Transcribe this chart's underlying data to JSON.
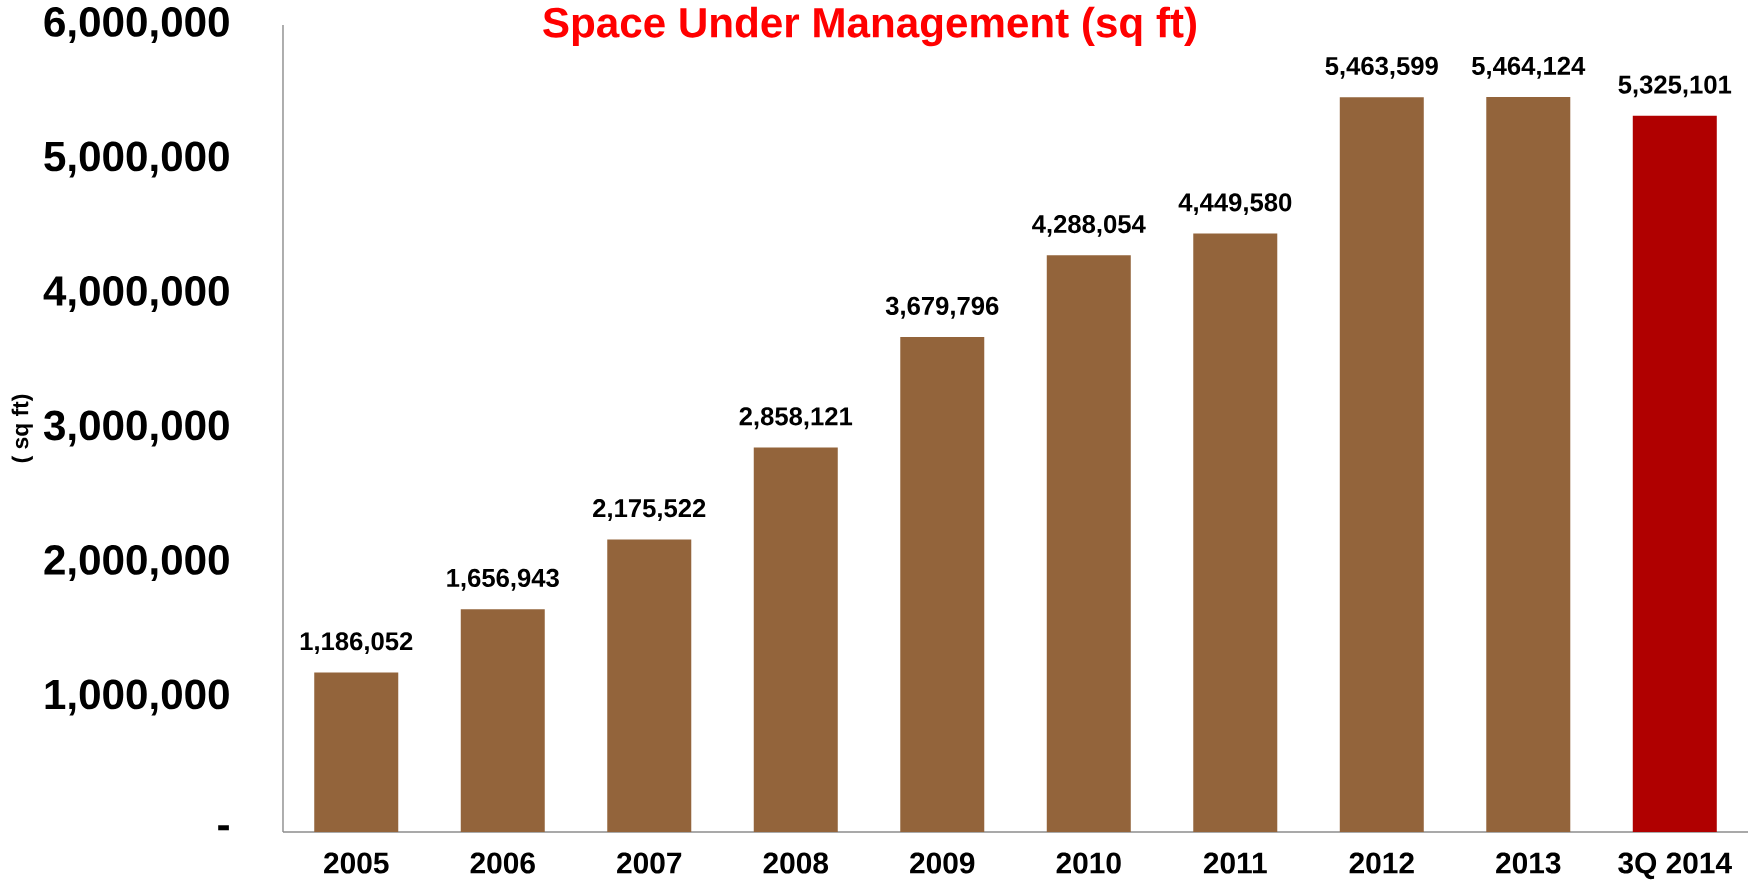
{
  "chart_data": {
    "type": "bar",
    "title": "Space Under Management (sq ft)",
    "ylabel": "( sq ft)",
    "categories": [
      "2005",
      "2006",
      "2007",
      "2008",
      "2009",
      "2010",
      "2011",
      "2012",
      "2013",
      "3Q 2014"
    ],
    "values": [
      1186052,
      1656943,
      2175522,
      2858121,
      3679796,
      4288054,
      4449580,
      5463599,
      5464124,
      5325101
    ],
    "colors": [
      "#93643b",
      "#93643b",
      "#93643b",
      "#93643b",
      "#93643b",
      "#93643b",
      "#93643b",
      "#93643b",
      "#93643b",
      "#b00000"
    ],
    "value_labels": [
      "1,186,052",
      "1,656,943",
      "2,175,522",
      "2,858,121",
      "3,679,796",
      "4,288,054",
      "4,449,580",
      "5,463,599",
      "5,464,124",
      "5,325,101"
    ],
    "ylim": [
      0,
      6000000
    ],
    "yticks": [
      {
        "value": 0,
        "label": "-"
      },
      {
        "value": 1000000,
        "label": "1,000,000"
      },
      {
        "value": 2000000,
        "label": "2,000,000"
      },
      {
        "value": 3000000,
        "label": "3,000,000"
      },
      {
        "value": 4000000,
        "label": "4,000,000"
      },
      {
        "value": 5000000,
        "label": "5,000,000"
      },
      {
        "value": 6000000,
        "label": "6,000,000"
      }
    ],
    "grid": false
  }
}
